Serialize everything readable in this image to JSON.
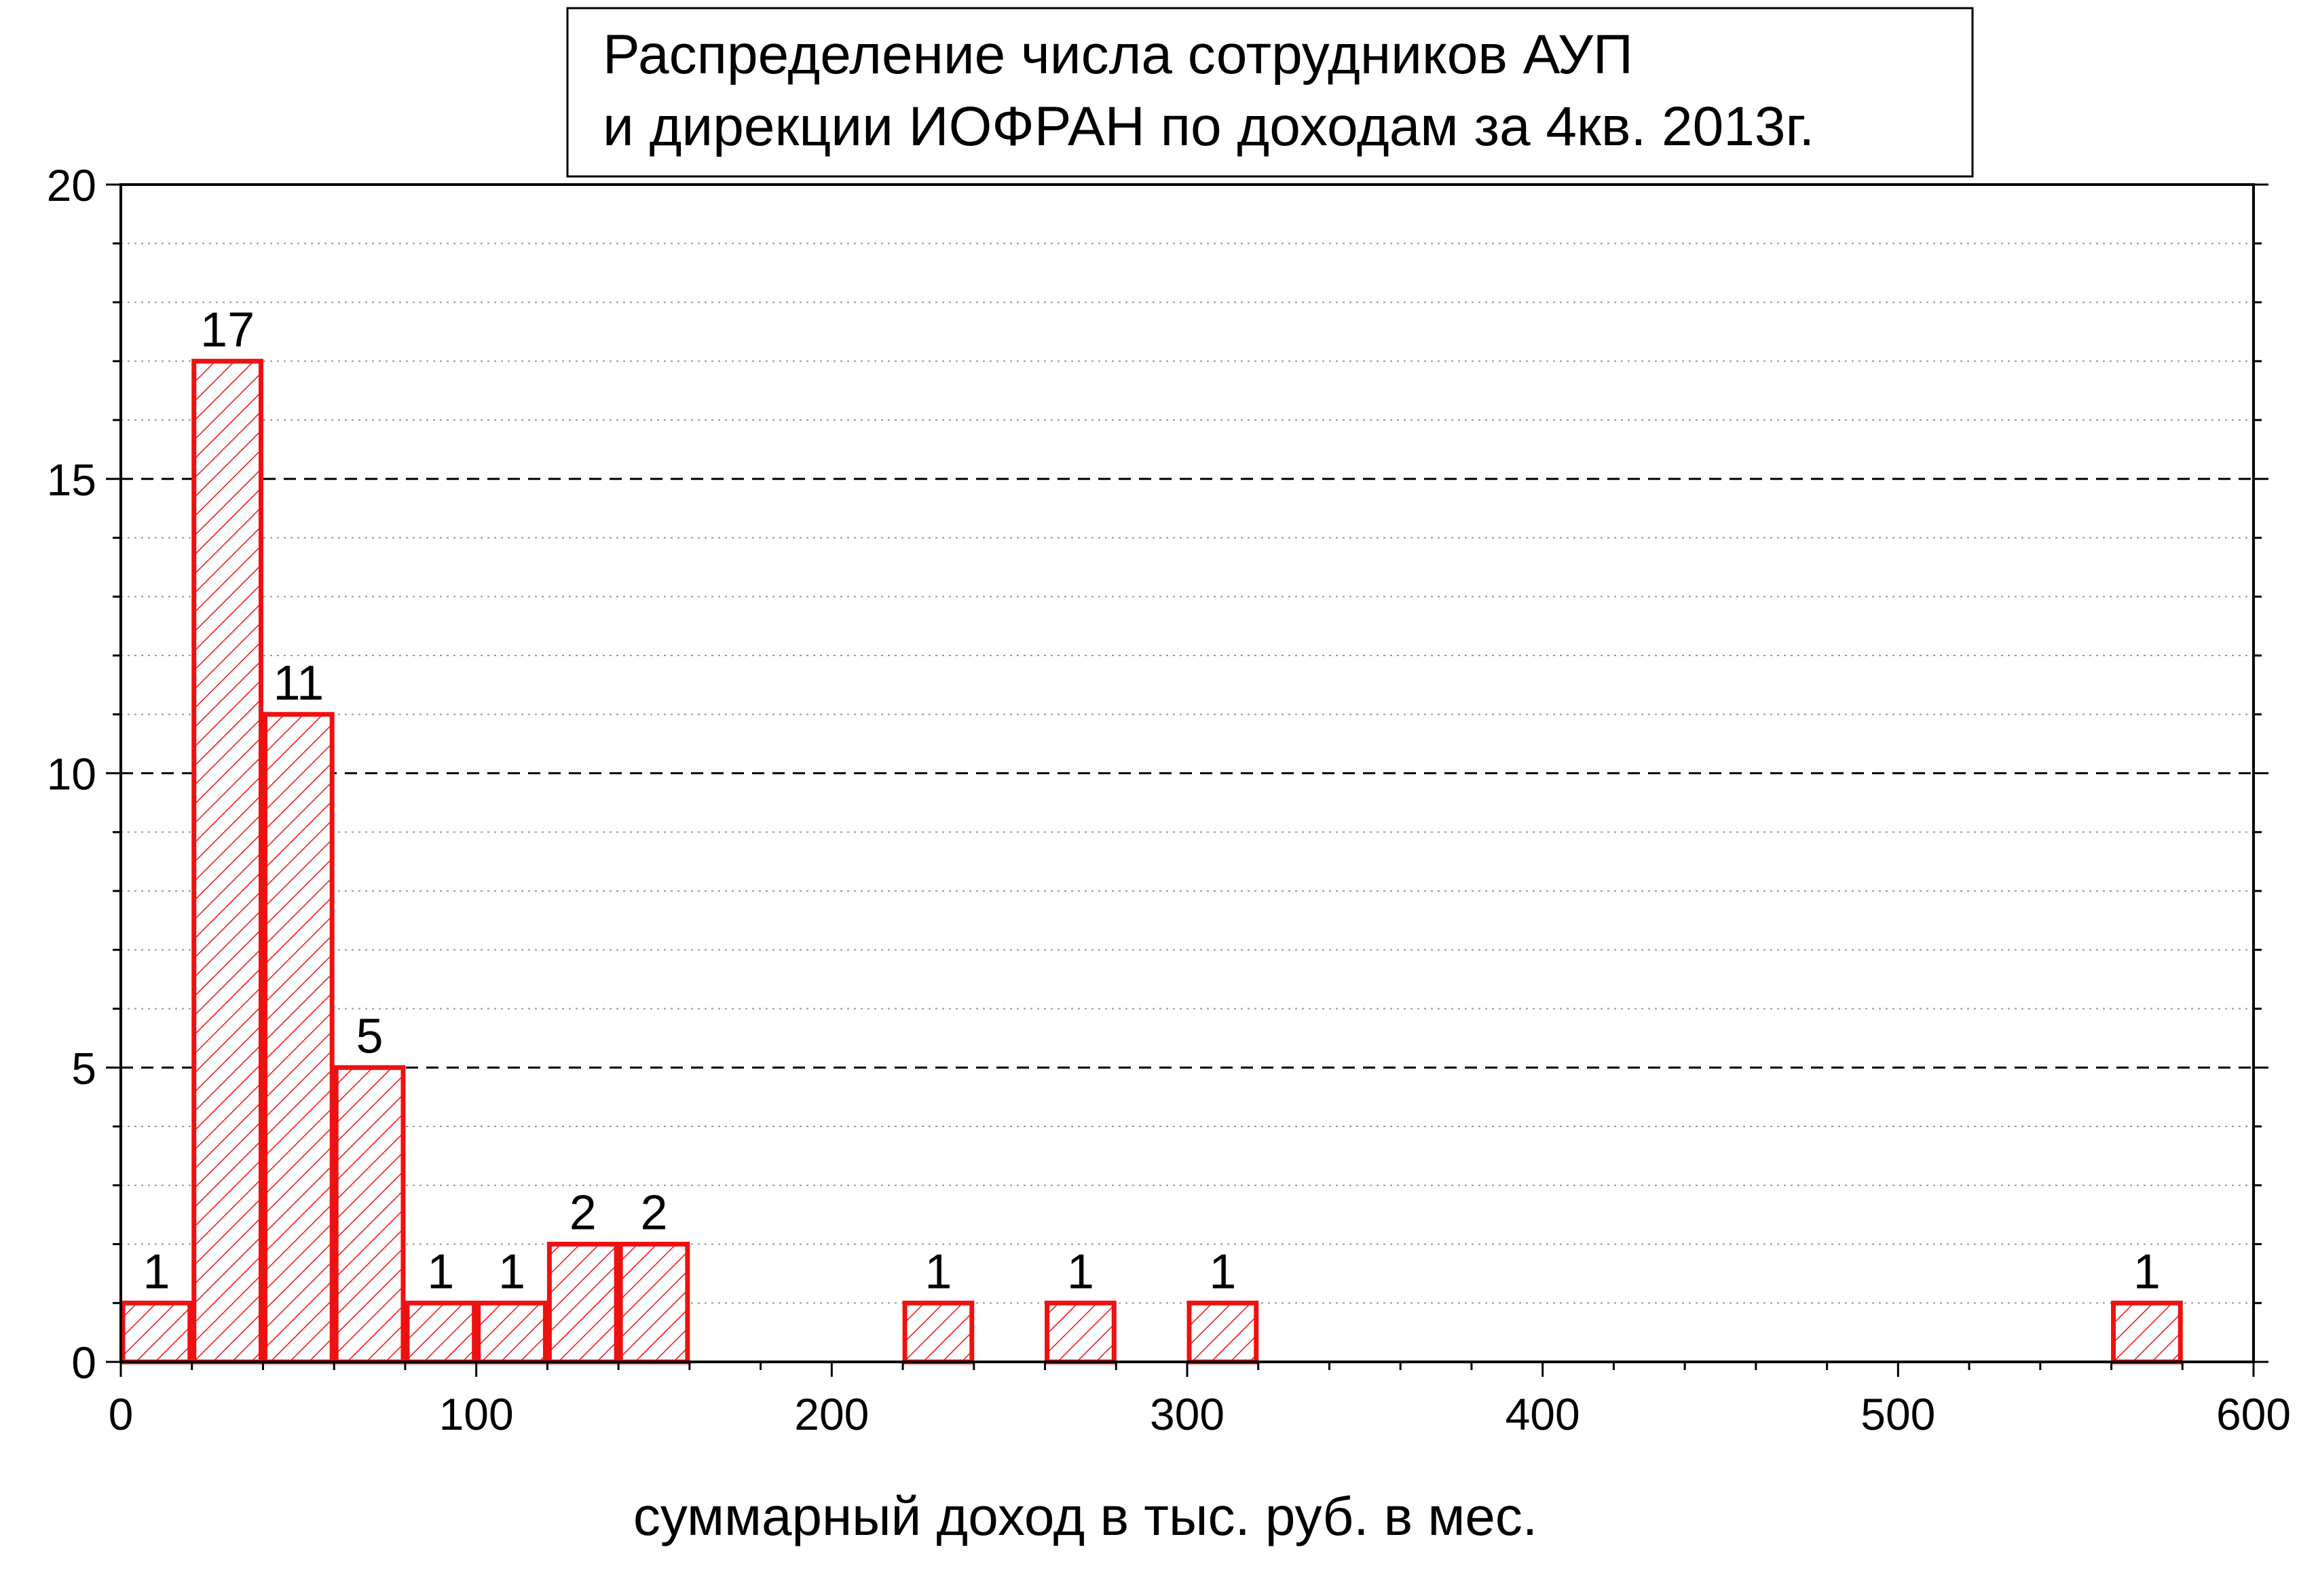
{
  "chart_data": {
    "type": "bar",
    "title": "Распределение числа сотрудников АУП и дирекции ИОФРАН по доходам за 4кв. 2013г.",
    "title_lines": [
      "Распределение числа сотрудников АУП",
      "и дирекции ИОФРАН по доходам за 4кв. 2013г."
    ],
    "xlabel": "суммарный доход в тыс. руб. в мес.",
    "ylabel": "",
    "xlim": [
      0,
      600
    ],
    "ylim": [
      0,
      20
    ],
    "x_ticks": [
      0,
      100,
      200,
      300,
      400,
      500,
      600
    ],
    "x_tick_labels": [
      "0",
      "100",
      "200",
      "300",
      "400",
      "500",
      "600"
    ],
    "y_ticks": [
      0,
      5,
      10,
      15,
      20
    ],
    "y_tick_labels": [
      "0",
      "5",
      "10",
      "15",
      "20"
    ],
    "bin_width": 20,
    "bars": [
      {
        "x": 10,
        "value": 1,
        "label": "1"
      },
      {
        "x": 30,
        "value": 17,
        "label": "17"
      },
      {
        "x": 50,
        "value": 11,
        "label": "11"
      },
      {
        "x": 70,
        "value": 5,
        "label": "5"
      },
      {
        "x": 90,
        "value": 1,
        "label": "1"
      },
      {
        "x": 110,
        "value": 1,
        "label": "1"
      },
      {
        "x": 130,
        "value": 2,
        "label": "2"
      },
      {
        "x": 150,
        "value": 2,
        "label": "2"
      },
      {
        "x": 230,
        "value": 1,
        "label": "1"
      },
      {
        "x": 270,
        "value": 1,
        "label": "1"
      },
      {
        "x": 310,
        "value": 1,
        "label": "1"
      },
      {
        "x": 570,
        "value": 1,
        "label": "1"
      }
    ],
    "grid": {
      "major_y": "dashed",
      "minor_y": "dotted"
    },
    "colors": {
      "bar_edge": "#ee1111",
      "hatch": "#ee1111",
      "bar_fill": "#ffffff",
      "axis": "#000000",
      "grid": "#000000"
    }
  }
}
